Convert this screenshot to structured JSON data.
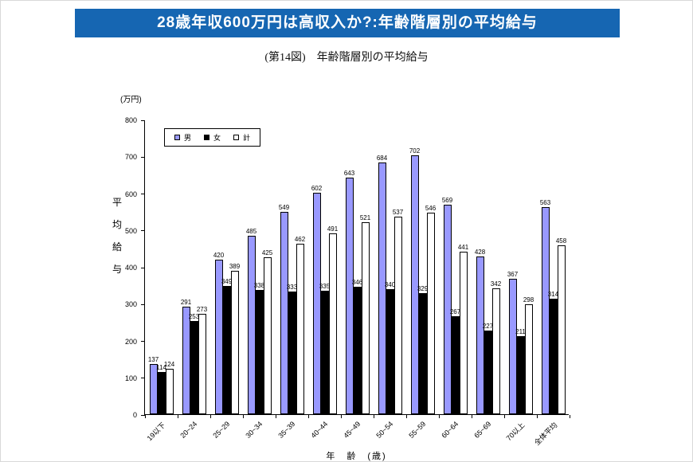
{
  "header": {
    "title": "28歳年収600万円は高収入か?:年齢階層別の平均給与",
    "caption": "(第14図)　年齢階層別の平均給与"
  },
  "colors": {
    "banner_bg": "#1666b2",
    "banner_text": "#ffffff",
    "male_bar": "#9999ff",
    "female_bar": "#000000",
    "total_bar": "#ffffff"
  },
  "chart_data": {
    "type": "bar",
    "title": "(第14図)　年齢階層別の平均給与",
    "unit_label": "(万円)",
    "ylabel": "平均給与",
    "xlabel": "年　齢　(歳)",
    "ylim": [
      0,
      800
    ],
    "yticks": [
      0,
      100,
      200,
      300,
      400,
      500,
      600,
      700,
      800
    ],
    "grid": false,
    "legend_position": "top-left",
    "categories": [
      "19以下",
      "20~24",
      "25~29",
      "30~34",
      "35~39",
      "40~44",
      "45~49",
      "50~54",
      "55~59",
      "60~64",
      "65~69",
      "70以上",
      "全体平均"
    ],
    "series": [
      {
        "name": "男",
        "color": "#9999ff",
        "values": [
          137,
          291,
          420,
          485,
          549,
          602,
          643,
          684,
          702,
          569,
          428,
          367,
          563
        ]
      },
      {
        "name": "女",
        "color": "#000000",
        "values": [
          114,
          253,
          349,
          338,
          333,
          335,
          346,
          340,
          329,
          267,
          227,
          211,
          314
        ]
      },
      {
        "name": "計",
        "color": "#ffffff",
        "values": [
          124,
          273,
          389,
          425,
          462,
          491,
          521,
          537,
          546,
          441,
          342,
          298,
          458
        ]
      }
    ]
  }
}
